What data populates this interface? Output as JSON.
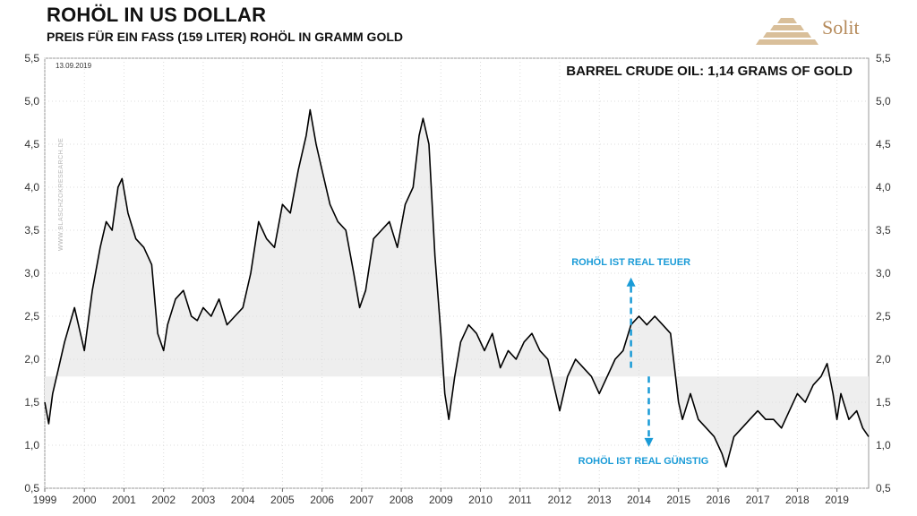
{
  "header": {
    "title": "ROHÖL IN US DOLLAR",
    "subtitle": "PREIS FÜR EIN FASS (159 LITER) ROHÖL IN GRAMM GOLD",
    "brand": "Solit"
  },
  "colors": {
    "line": "#000000",
    "band": "#eeeeee",
    "annotation": "#1a9bd7",
    "brand": "#b58a5a"
  },
  "chart_data": {
    "type": "line",
    "title": "ROHÖL IN US DOLLAR",
    "subtitle": "PREIS FÜR EIN FASS (159 LITER) ROHÖL IN GRAMM GOLD",
    "xlabel": "",
    "ylabel": "",
    "date_label": "13.09.2019",
    "watermark": "WWW.BLASCHZOKRESEARCH.DE",
    "headline": "BARREL CRUDE OIL: 1,14 GRAMS OF  GOLD",
    "reference_level": 1.8,
    "xlim": [
      1999.0,
      2019.8
    ],
    "ylim": [
      0.5,
      5.5
    ],
    "yticks": [
      0.5,
      1.0,
      1.5,
      2.0,
      2.5,
      3.0,
      3.5,
      4.0,
      4.5,
      5.0,
      5.5
    ],
    "ytick_labels": [
      "0,5",
      "1,0",
      "1,5",
      "2,0",
      "2,5",
      "3,0",
      "3,5",
      "4,0",
      "4,5",
      "5,0",
      "5,5"
    ],
    "xticks": [
      1999,
      2000,
      2001,
      2002,
      2003,
      2004,
      2005,
      2006,
      2007,
      2008,
      2009,
      2010,
      2011,
      2012,
      2013,
      2014,
      2015,
      2016,
      2017,
      2018,
      2019
    ],
    "xtick_labels": [
      "1999",
      "2000",
      "2001",
      "2002",
      "2003",
      "2004",
      "2005",
      "2006",
      "2007",
      "2008",
      "2009",
      "2010",
      "2011",
      "2012",
      "2013",
      "2014",
      "2015",
      "2016",
      "2017",
      "2018",
      "2019"
    ],
    "annotations": [
      {
        "text": "ROHÖL IST  REAL  TEUER",
        "arrow": "up",
        "x": 2013.8,
        "y_from": 1.9,
        "y_to": 2.95
      },
      {
        "text": "ROHÖL  IST  REAL  GÜNSTIG",
        "arrow": "down",
        "x": 2014.25,
        "y_from": 1.8,
        "y_to": 0.98
      }
    ],
    "series": [
      {
        "name": "Barrel crude oil in grams of gold",
        "x": [
          1999.0,
          1999.1,
          1999.2,
          1999.35,
          1999.5,
          1999.75,
          2000.0,
          2000.2,
          2000.4,
          2000.55,
          2000.7,
          2000.85,
          2000.95,
          2001.1,
          2001.3,
          2001.5,
          2001.7,
          2001.85,
          2002.0,
          2002.1,
          2002.3,
          2002.5,
          2002.7,
          2002.85,
          2003.0,
          2003.2,
          2003.4,
          2003.6,
          2003.8,
          2004.0,
          2004.2,
          2004.4,
          2004.6,
          2004.8,
          2005.0,
          2005.2,
          2005.4,
          2005.6,
          2005.7,
          2005.85,
          2006.0,
          2006.2,
          2006.4,
          2006.6,
          2006.8,
          2006.95,
          2007.1,
          2007.3,
          2007.5,
          2007.7,
          2007.9,
          2008.1,
          2008.3,
          2008.45,
          2008.55,
          2008.7,
          2008.85,
          2009.0,
          2009.1,
          2009.2,
          2009.35,
          2009.5,
          2009.7,
          2009.9,
          2010.1,
          2010.3,
          2010.5,
          2010.7,
          2010.9,
          2011.1,
          2011.3,
          2011.5,
          2011.7,
          2011.9,
          2012.0,
          2012.2,
          2012.4,
          2012.6,
          2012.8,
          2013.0,
          2013.2,
          2013.4,
          2013.6,
          2013.8,
          2014.0,
          2014.2,
          2014.4,
          2014.6,
          2014.8,
          2015.0,
          2015.1,
          2015.3,
          2015.5,
          2015.7,
          2015.9,
          2016.1,
          2016.2,
          2016.4,
          2016.6,
          2016.8,
          2017.0,
          2017.2,
          2017.4,
          2017.6,
          2017.8,
          2018.0,
          2018.2,
          2018.4,
          2018.6,
          2018.75,
          2018.9,
          2019.0,
          2019.1,
          2019.3,
          2019.5,
          2019.65,
          2019.8
        ],
        "y": [
          1.5,
          1.25,
          1.6,
          1.9,
          2.2,
          2.6,
          2.1,
          2.8,
          3.3,
          3.6,
          3.5,
          4.0,
          4.1,
          3.7,
          3.4,
          3.3,
          3.1,
          2.3,
          2.1,
          2.4,
          2.7,
          2.8,
          2.5,
          2.45,
          2.6,
          2.5,
          2.7,
          2.4,
          2.5,
          2.6,
          3.0,
          3.6,
          3.4,
          3.3,
          3.8,
          3.7,
          4.2,
          4.6,
          4.9,
          4.5,
          4.2,
          3.8,
          3.6,
          3.5,
          3.0,
          2.6,
          2.8,
          3.4,
          3.5,
          3.6,
          3.3,
          3.8,
          4.0,
          4.6,
          4.8,
          4.5,
          3.2,
          2.3,
          1.6,
          1.3,
          1.8,
          2.2,
          2.4,
          2.3,
          2.1,
          2.3,
          1.9,
          2.1,
          2.0,
          2.2,
          2.3,
          2.1,
          2.0,
          1.6,
          1.4,
          1.8,
          2.0,
          1.9,
          1.8,
          1.6,
          1.8,
          2.0,
          2.1,
          2.4,
          2.5,
          2.4,
          2.5,
          2.4,
          2.3,
          1.5,
          1.3,
          1.6,
          1.3,
          1.2,
          1.1,
          0.9,
          0.75,
          1.1,
          1.2,
          1.3,
          1.4,
          1.3,
          1.3,
          1.2,
          1.4,
          1.6,
          1.5,
          1.7,
          1.8,
          1.95,
          1.6,
          1.3,
          1.6,
          1.3,
          1.4,
          1.2,
          1.1
        ]
      }
    ]
  }
}
